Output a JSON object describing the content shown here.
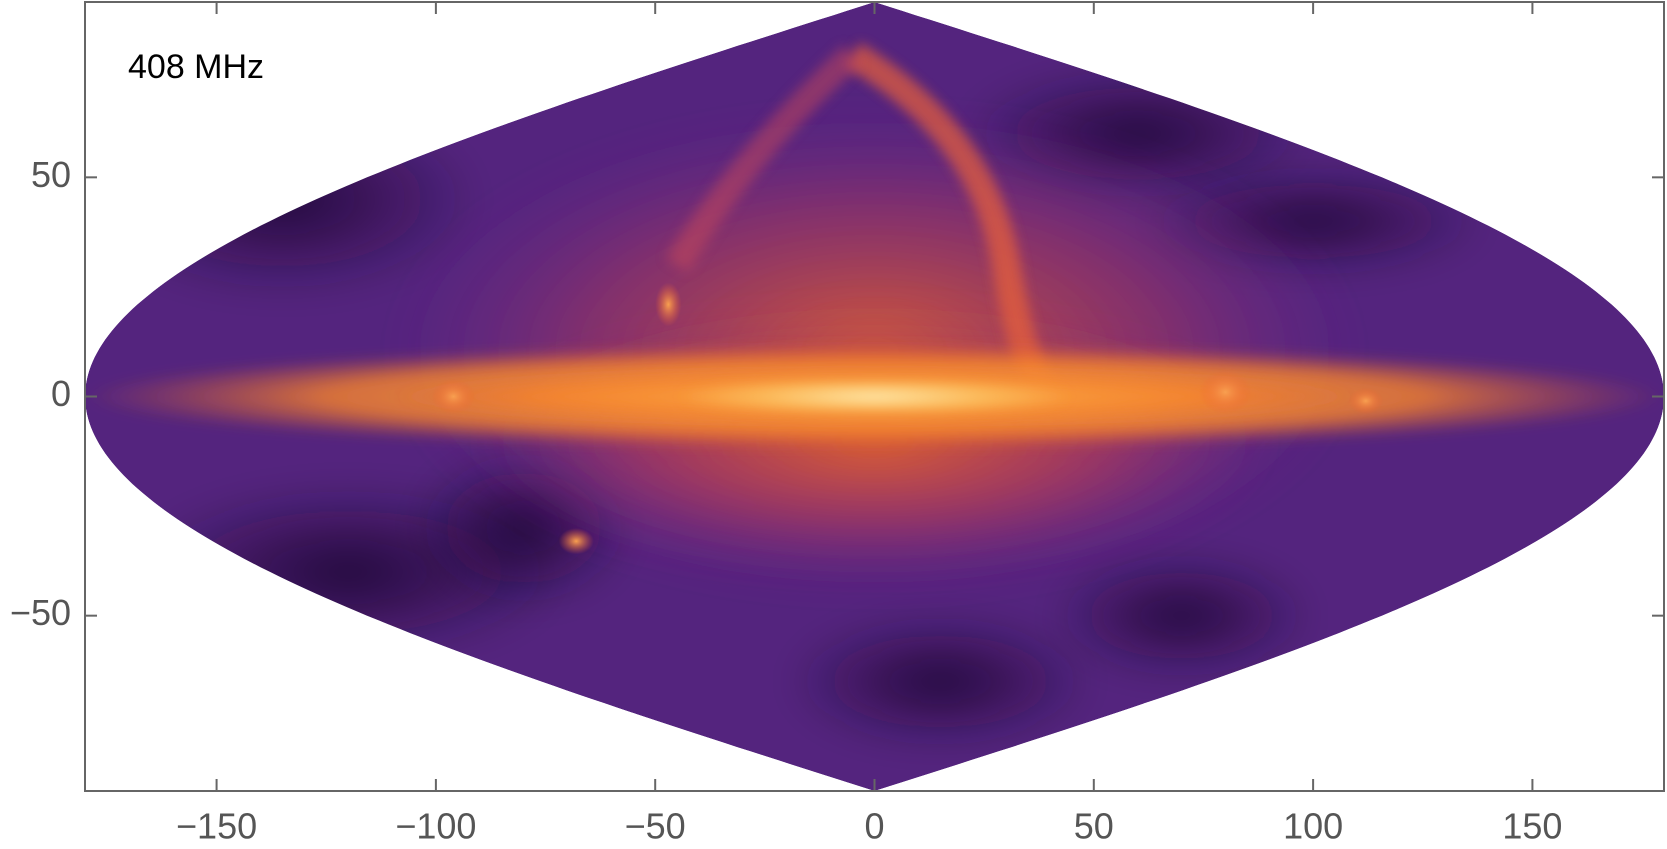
{
  "chart_data": {
    "type": "map",
    "projection": "sinusoidal",
    "annotation": "408 MHz",
    "xlim": [
      -180,
      180
    ],
    "ylim": [
      -90,
      90
    ],
    "xticks": [
      {
        "value": -150,
        "label": "−150"
      },
      {
        "value": -100,
        "label": "−100"
      },
      {
        "value": -50,
        "label": "−50"
      },
      0,
      50,
      100,
      150
    ],
    "yticks": [
      {
        "value": -50,
        "label": "−50"
      },
      0,
      50
    ]
  }
}
